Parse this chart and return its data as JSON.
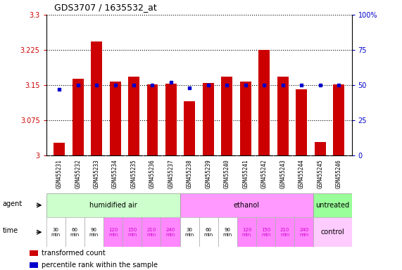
{
  "title": "GDS3707 / 1635532_at",
  "bar_values": [
    3.027,
    3.163,
    3.243,
    3.158,
    3.168,
    3.152,
    3.153,
    3.115,
    3.155,
    3.168,
    3.158,
    3.225,
    3.168,
    3.141,
    3.028,
    3.152
  ],
  "dot_values": [
    47,
    50,
    50,
    50,
    50,
    50,
    52,
    48,
    50,
    50,
    50,
    50,
    50,
    50,
    50,
    50
  ],
  "xlabels": [
    "GSM455231",
    "GSM455232",
    "GSM455233",
    "GSM455234",
    "GSM455235",
    "GSM455236",
    "GSM455237",
    "GSM455238",
    "GSM455239",
    "GSM455240",
    "GSM455241",
    "GSM455242",
    "GSM455243",
    "GSM455244",
    "GSM455245",
    "GSM455246"
  ],
  "ylim_left": [
    3.0,
    3.3
  ],
  "ylim_right": [
    0,
    100
  ],
  "yticks_left": [
    3.0,
    3.075,
    3.15,
    3.225,
    3.3
  ],
  "ytick_labels_left": [
    "3",
    "3.075",
    "3.15",
    "3.225",
    "3.3"
  ],
  "yticks_right": [
    0,
    25,
    50,
    75,
    100
  ],
  "ytick_labels_right": [
    "0",
    "25",
    "50",
    "75",
    "100%"
  ],
  "bar_color": "#cc0000",
  "dot_color": "#0000cc",
  "agent_groups": [
    {
      "label": "humidified air",
      "start": 0,
      "end": 7,
      "color": "#ccffcc"
    },
    {
      "label": "ethanol",
      "start": 7,
      "end": 14,
      "color": "#ff99ff"
    },
    {
      "label": "untreated",
      "start": 14,
      "end": 16,
      "color": "#99ff99"
    }
  ],
  "time_labels": [
    "30\nmin",
    "60\nmin",
    "90\nmin",
    "120\nmin",
    "150\nmin",
    "210\nmin",
    "240\nmin",
    "30\nmin",
    "60\nmin",
    "90\nmin",
    "120\nmin",
    "150\nmin",
    "210\nmin",
    "240\nmin"
  ],
  "time_colors": [
    "#ffffff",
    "#ffffff",
    "#ffffff",
    "#ff88ff",
    "#ff88ff",
    "#ff88ff",
    "#ff88ff",
    "#ffffff",
    "#ffffff",
    "#ffffff",
    "#ff88ff",
    "#ff88ff",
    "#ff88ff",
    "#ff88ff"
  ],
  "time_fontcolors": [
    "#000000",
    "#000000",
    "#000000",
    "#cc00cc",
    "#cc00cc",
    "#cc00cc",
    "#cc00cc",
    "#000000",
    "#000000",
    "#000000",
    "#cc00cc",
    "#cc00cc",
    "#cc00cc",
    "#cc00cc"
  ],
  "control_label": "control",
  "control_color": "#ffccff",
  "agent_label": "agent",
  "time_label": "time",
  "legend_bar_label": "transformed count",
  "legend_dot_label": "percentile rank within the sample",
  "xlabel_bg_color": "#cccccc",
  "background_color": "#ffffff",
  "bar_width": 0.6
}
